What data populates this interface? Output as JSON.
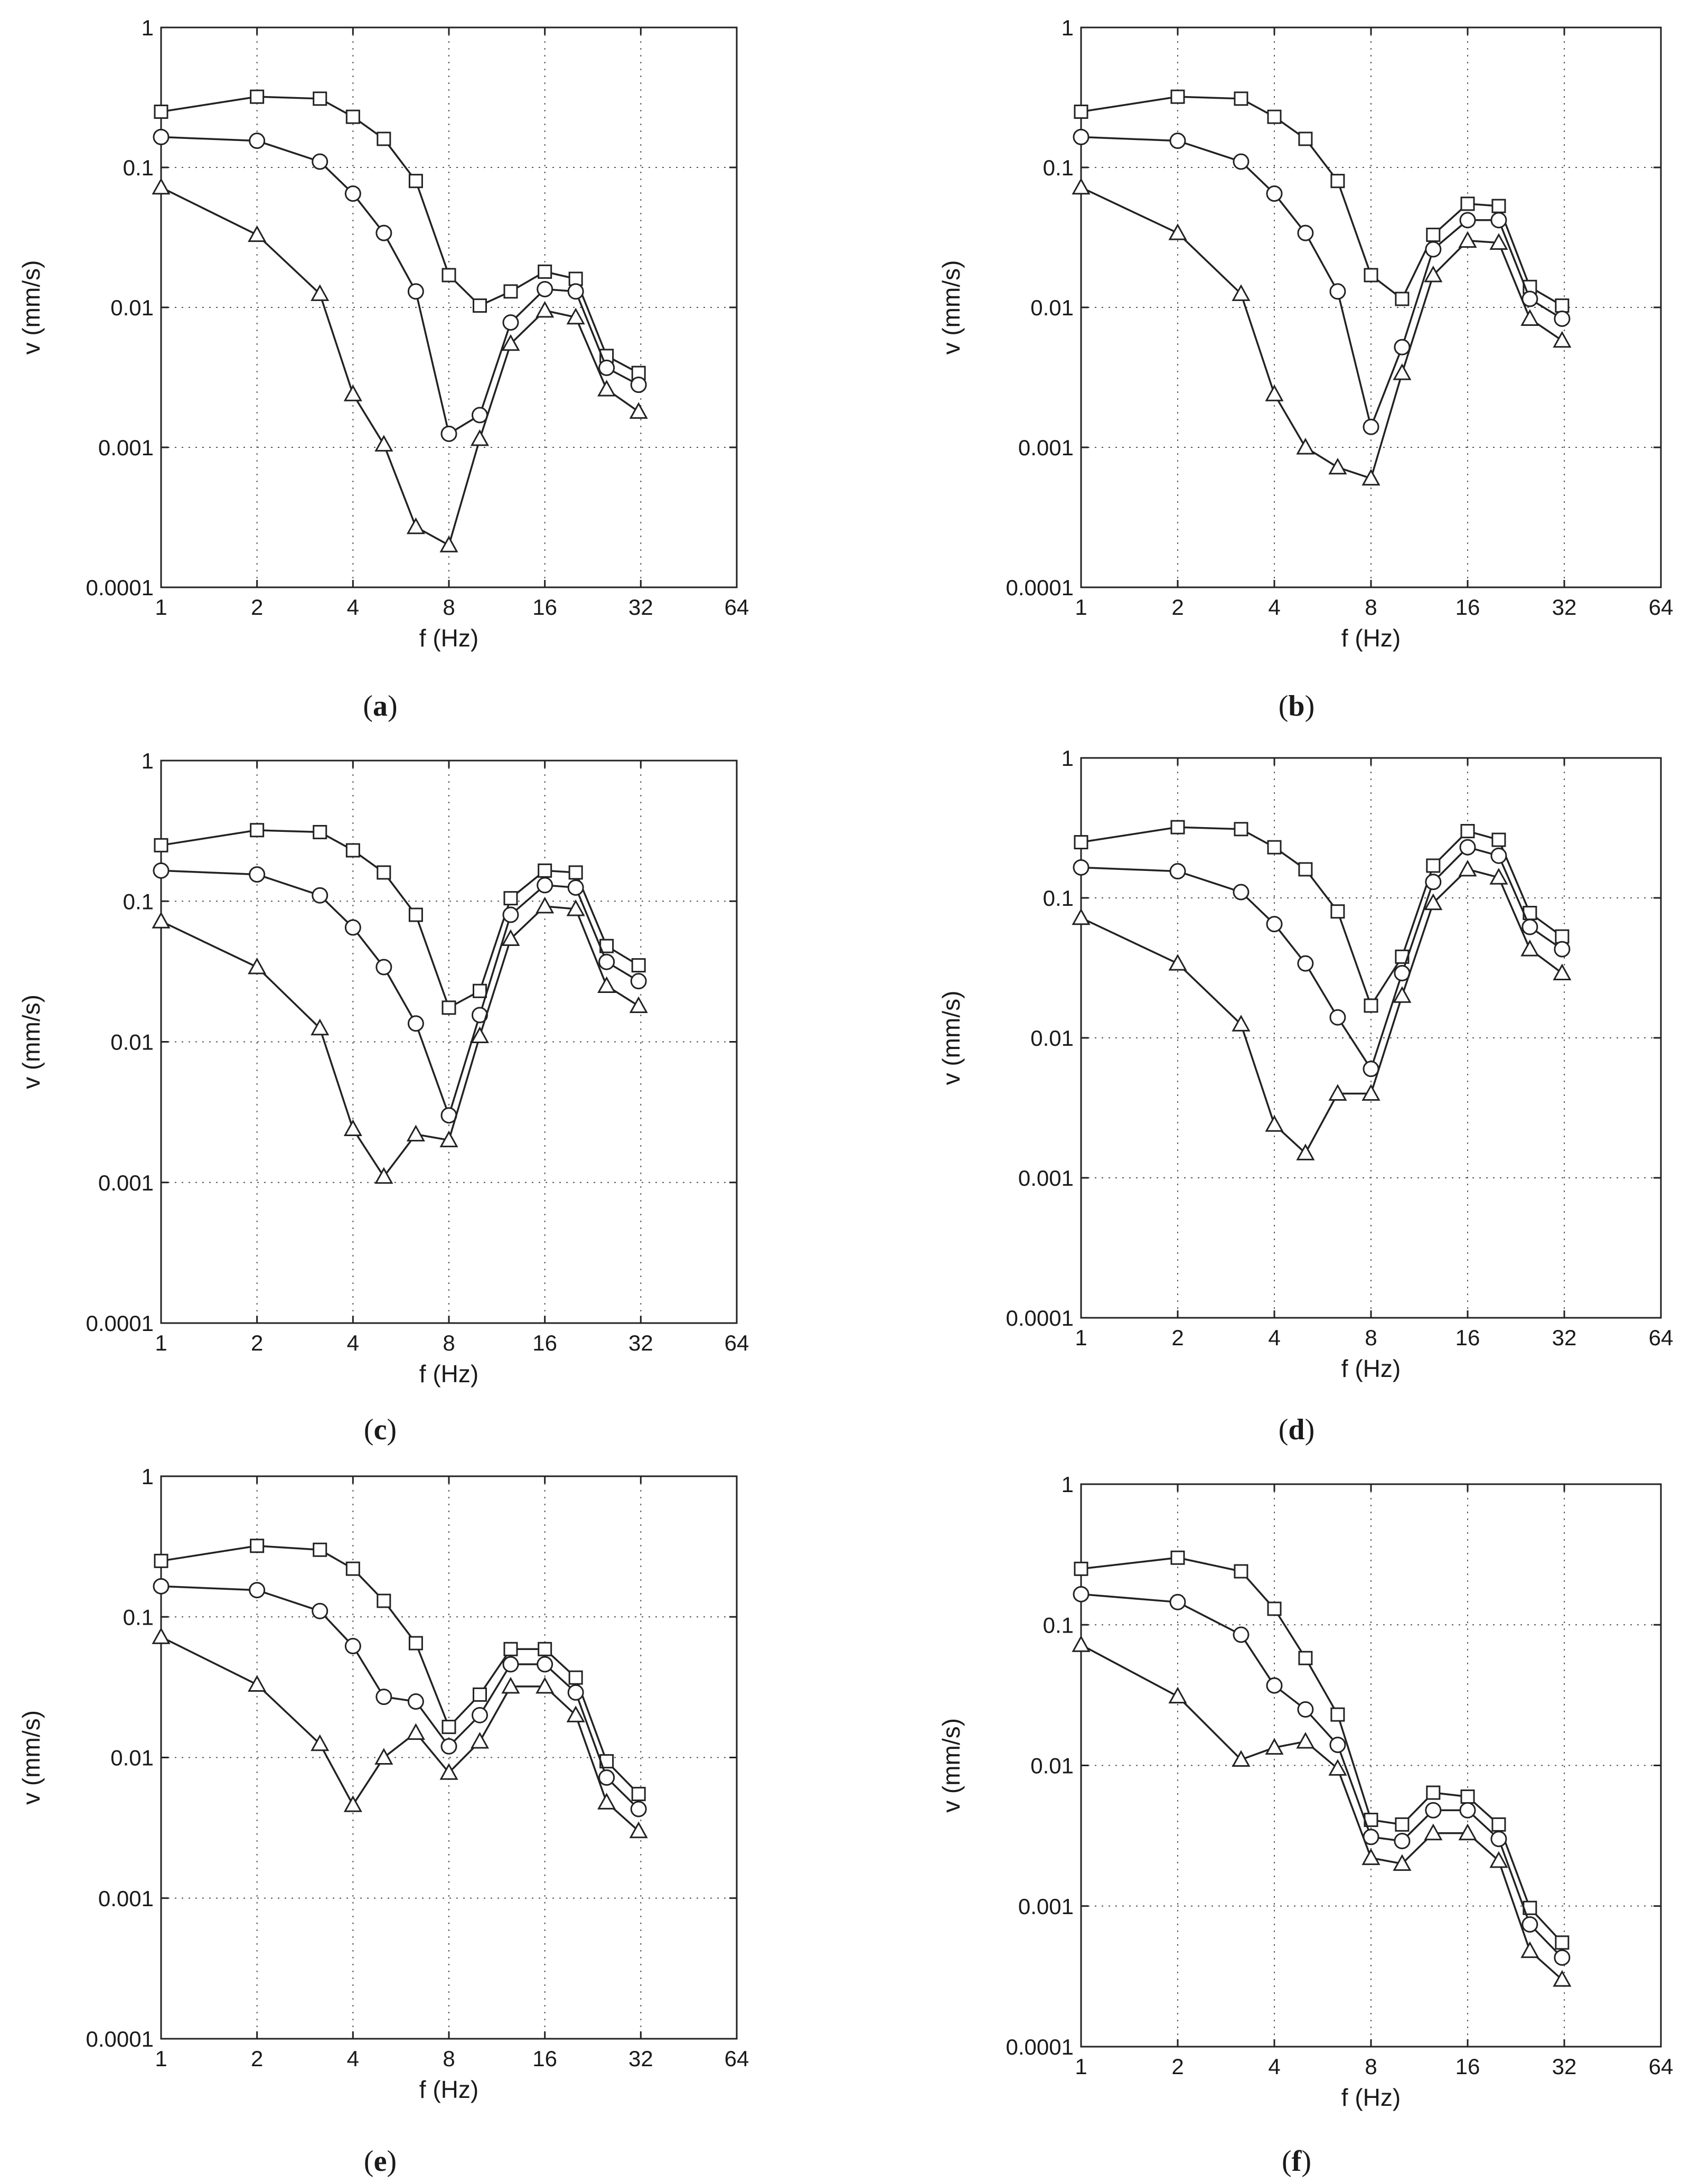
{
  "chart_data": [
    {
      "type": "line",
      "caption_letter": "a",
      "xscale": "log2",
      "yscale": "log10",
      "xlabel": "f (Hz)",
      "ylabel": "v (mm/s)",
      "xlim": [
        1,
        64
      ],
      "ylim": [
        0.0001,
        1
      ],
      "xticks": [
        "1",
        "2",
        "4",
        "8",
        "16",
        "32",
        "64"
      ],
      "yticks": [
        "1",
        "0.1",
        "0.01",
        "0.001",
        "0.0001"
      ],
      "grid": true,
      "x": [
        1,
        2,
        3.15,
        4,
        5,
        6.3,
        8,
        10,
        12.5,
        16,
        20,
        25,
        31.5
      ],
      "series": [
        {
          "name": "square",
          "marker": "square",
          "values": [
            0.25,
            0.32,
            0.31,
            0.23,
            0.16,
            0.08,
            0.017,
            0.0103,
            0.013,
            0.018,
            0.016,
            0.0045,
            0.0034
          ]
        },
        {
          "name": "circle",
          "marker": "circle",
          "values": [
            0.165,
            0.155,
            0.11,
            0.065,
            0.034,
            0.013,
            0.00125,
            0.0017,
            0.0078,
            0.0135,
            0.013,
            0.0037,
            0.0028
          ]
        },
        {
          "name": "triangle",
          "marker": "triangle",
          "values": [
            0.072,
            0.033,
            0.0125,
            0.0024,
            0.00105,
            0.00027,
            0.0002,
            0.00115,
            0.0055,
            0.0095,
            0.0085,
            0.0026,
            0.0018
          ]
        }
      ]
    },
    {
      "type": "line",
      "caption_letter": "b",
      "xscale": "log2",
      "yscale": "log10",
      "xlabel": "f (Hz)",
      "ylabel": "v (mm/s)",
      "xlim": [
        1,
        64
      ],
      "ylim": [
        0.0001,
        1
      ],
      "xticks": [
        "1",
        "2",
        "4",
        "8",
        "16",
        "32",
        "64"
      ],
      "yticks": [
        "1",
        "0.1",
        "0.01",
        "0.001",
        "0.0001"
      ],
      "grid": true,
      "x": [
        1,
        2,
        3.15,
        4,
        5,
        6.3,
        8,
        10,
        12.5,
        16,
        20,
        25,
        31.5
      ],
      "series": [
        {
          "name": "square",
          "marker": "square",
          "values": [
            0.25,
            0.32,
            0.31,
            0.23,
            0.16,
            0.08,
            0.017,
            0.0115,
            0.033,
            0.055,
            0.053,
            0.014,
            0.0103
          ]
        },
        {
          "name": "circle",
          "marker": "circle",
          "values": [
            0.165,
            0.155,
            0.11,
            0.065,
            0.034,
            0.013,
            0.0014,
            0.0052,
            0.026,
            0.042,
            0.042,
            0.0115,
            0.0083
          ]
        },
        {
          "name": "triangle",
          "marker": "triangle",
          "values": [
            0.072,
            0.034,
            0.0125,
            0.0024,
            0.001,
            0.00072,
            0.0006,
            0.0034,
            0.017,
            0.03,
            0.029,
            0.0083,
            0.0058
          ]
        }
      ]
    },
    {
      "type": "line",
      "caption_letter": "c",
      "xscale": "log2",
      "yscale": "log10",
      "xlabel": "f (Hz)",
      "ylabel": "v (mm/s)",
      "xlim": [
        1,
        64
      ],
      "ylim": [
        0.0001,
        1
      ],
      "xticks": [
        "1",
        "2",
        "4",
        "8",
        "16",
        "32",
        "64"
      ],
      "yticks": [
        "1",
        "0.1",
        "0.01",
        "0.001",
        "0.0001"
      ],
      "grid": true,
      "x": [
        1,
        2,
        3.15,
        4,
        5,
        6.3,
        8,
        10,
        12.5,
        16,
        20,
        25,
        31.5
      ],
      "series": [
        {
          "name": "square",
          "marker": "square",
          "values": [
            0.25,
            0.32,
            0.31,
            0.23,
            0.16,
            0.08,
            0.0175,
            0.023,
            0.105,
            0.165,
            0.16,
            0.048,
            0.035
          ]
        },
        {
          "name": "circle",
          "marker": "circle",
          "values": [
            0.165,
            0.155,
            0.11,
            0.065,
            0.034,
            0.0135,
            0.003,
            0.0155,
            0.08,
            0.13,
            0.125,
            0.037,
            0.027
          ]
        },
        {
          "name": "triangle",
          "marker": "triangle",
          "values": [
            0.072,
            0.034,
            0.0125,
            0.0024,
            0.0011,
            0.0022,
            0.002,
            0.011,
            0.054,
            0.092,
            0.088,
            0.025,
            0.018
          ]
        }
      ]
    },
    {
      "type": "line",
      "caption_letter": "d",
      "xscale": "log2",
      "yscale": "log10",
      "xlabel": "f (Hz)",
      "ylabel": "v (mm/s)",
      "xlim": [
        1,
        64
      ],
      "ylim": [
        0.0001,
        1
      ],
      "xticks": [
        "1",
        "2",
        "4",
        "8",
        "16",
        "32",
        "64"
      ],
      "yticks": [
        "1",
        "0.1",
        "0.01",
        "0.001",
        "0.0001"
      ],
      "grid": true,
      "x": [
        1,
        2,
        3.15,
        4,
        5,
        6.3,
        8,
        10,
        12.5,
        16,
        20,
        25,
        31.5
      ],
      "series": [
        {
          "name": "square",
          "marker": "square",
          "values": [
            0.25,
            0.32,
            0.31,
            0.23,
            0.16,
            0.08,
            0.017,
            0.038,
            0.17,
            0.3,
            0.26,
            0.078,
            0.053
          ]
        },
        {
          "name": "circle",
          "marker": "circle",
          "values": [
            0.165,
            0.155,
            0.11,
            0.065,
            0.034,
            0.014,
            0.006,
            0.029,
            0.13,
            0.23,
            0.2,
            0.062,
            0.043
          ]
        },
        {
          "name": "triangle",
          "marker": "triangle",
          "values": [
            0.072,
            0.034,
            0.0125,
            0.0024,
            0.0015,
            0.004,
            0.004,
            0.02,
            0.092,
            0.16,
            0.14,
            0.043,
            0.029
          ]
        }
      ]
    },
    {
      "type": "line",
      "caption_letter": "e",
      "xscale": "log2",
      "yscale": "log10",
      "xlabel": "f (Hz)",
      "ylabel": "v (mm/s)",
      "xlim": [
        1,
        64
      ],
      "ylim": [
        0.0001,
        1
      ],
      "xticks": [
        "1",
        "2",
        "4",
        "8",
        "16",
        "32",
        "64"
      ],
      "yticks": [
        "1",
        "0.1",
        "0.01",
        "0.001",
        "0.0001"
      ],
      "grid": true,
      "x": [
        1,
        2,
        3.15,
        4,
        5,
        6.3,
        8,
        10,
        12.5,
        16,
        20,
        25,
        31.5
      ],
      "series": [
        {
          "name": "square",
          "marker": "square",
          "values": [
            0.25,
            0.32,
            0.3,
            0.22,
            0.13,
            0.065,
            0.0165,
            0.028,
            0.059,
            0.059,
            0.037,
            0.0094,
            0.0055
          ]
        },
        {
          "name": "circle",
          "marker": "circle",
          "values": [
            0.165,
            0.155,
            0.11,
            0.062,
            0.027,
            0.025,
            0.012,
            0.02,
            0.046,
            0.046,
            0.029,
            0.0072,
            0.0043
          ]
        },
        {
          "name": "triangle",
          "marker": "triangle",
          "values": [
            0.072,
            0.033,
            0.0125,
            0.0046,
            0.01,
            0.015,
            0.0078,
            0.013,
            0.032,
            0.032,
            0.02,
            0.0048,
            0.003
          ]
        }
      ]
    },
    {
      "type": "line",
      "caption_letter": "f",
      "xscale": "log2",
      "yscale": "log10",
      "xlabel": "f (Hz)",
      "ylabel": "v (mm/s)",
      "xlim": [
        1,
        64
      ],
      "ylim": [
        0.0001,
        1
      ],
      "xticks": [
        "1",
        "2",
        "4",
        "8",
        "16",
        "32",
        "64"
      ],
      "yticks": [
        "1",
        "0.1",
        "0.01",
        "0.001",
        "0.0001"
      ],
      "grid": true,
      "x": [
        1,
        2,
        3.15,
        4,
        5,
        6.3,
        8,
        10,
        12.5,
        16,
        20,
        25,
        31.5
      ],
      "series": [
        {
          "name": "square",
          "marker": "square",
          "values": [
            0.25,
            0.3,
            0.24,
            0.13,
            0.058,
            0.023,
            0.0041,
            0.0038,
            0.0064,
            0.006,
            0.0038,
            0.00097,
            0.00055
          ]
        },
        {
          "name": "circle",
          "marker": "circle",
          "values": [
            0.165,
            0.145,
            0.085,
            0.037,
            0.025,
            0.014,
            0.0031,
            0.0029,
            0.0048,
            0.0048,
            0.003,
            0.00074,
            0.00043
          ]
        },
        {
          "name": "triangle",
          "marker": "triangle",
          "values": [
            0.072,
            0.031,
            0.011,
            0.0134,
            0.0148,
            0.0095,
            0.0022,
            0.002,
            0.0033,
            0.0033,
            0.0021,
            0.00048,
            0.0003
          ]
        }
      ]
    }
  ]
}
